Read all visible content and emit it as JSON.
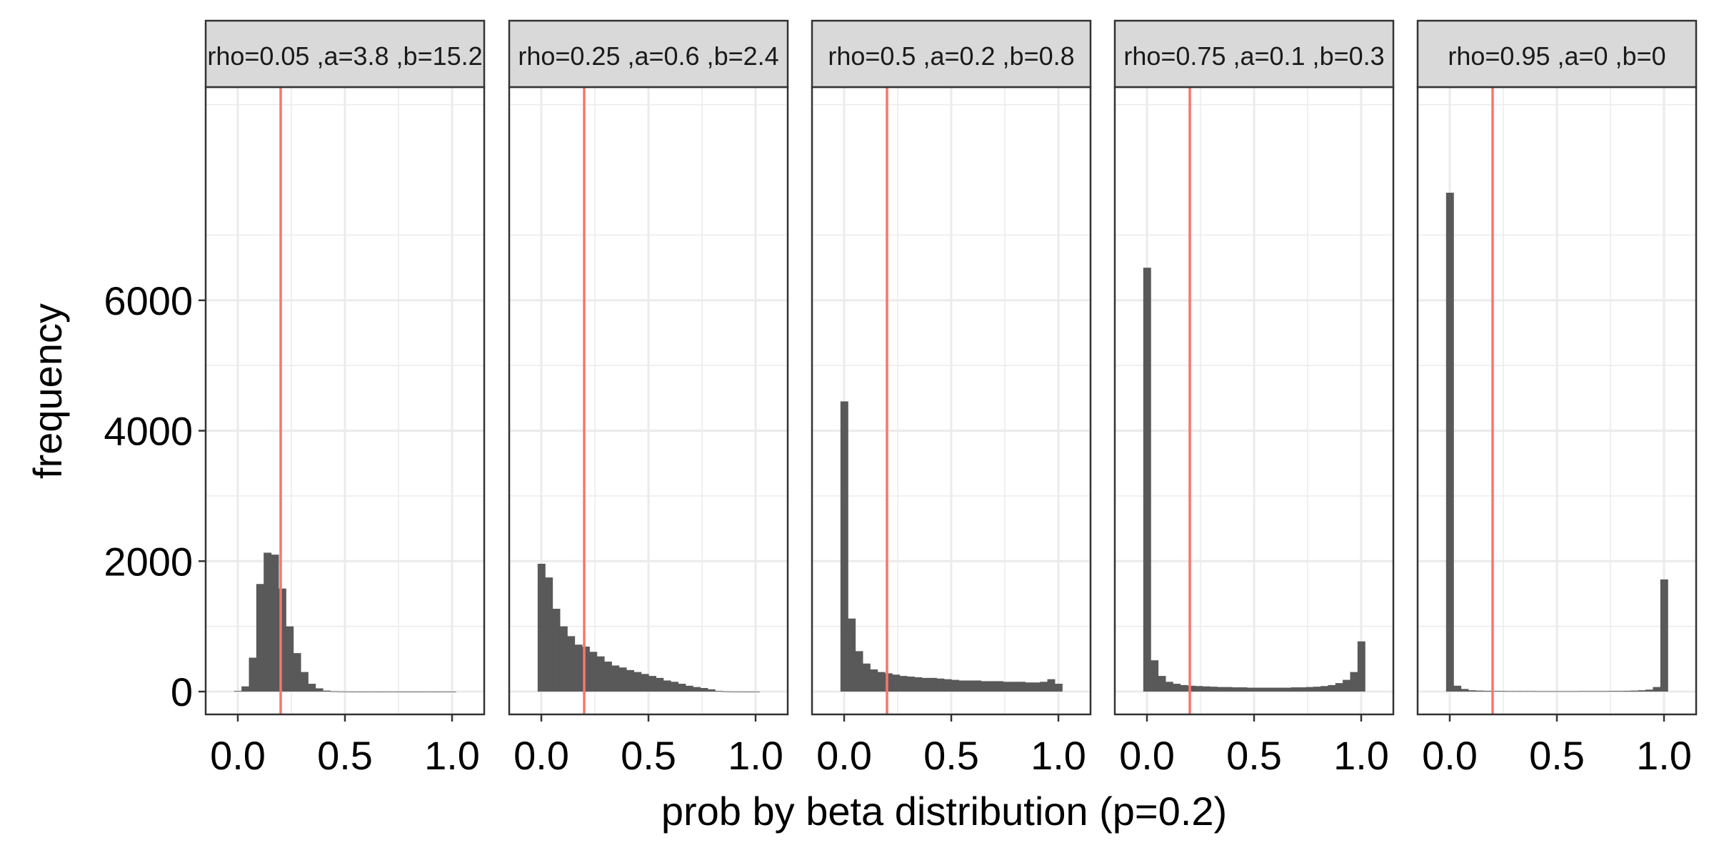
{
  "chart_data": {
    "type": "bar",
    "xlabel": "prob by beta distribution (p=0.2)",
    "ylabel": "frequency",
    "xlim": [
      -0.15,
      1.15
    ],
    "ylim": [
      -350,
      9270
    ],
    "x_ticks": [
      0.0,
      0.5,
      1.0
    ],
    "x_tick_labels": [
      "0.0",
      "0.5",
      "1.0"
    ],
    "x_minor_ticks": [
      0.25,
      0.75
    ],
    "y_ticks": [
      0,
      2000,
      4000,
      6000
    ],
    "y_tick_labels": [
      "0",
      "2000",
      "4000",
      "6000"
    ],
    "y_minor_ticks": [
      1000,
      3000,
      5000,
      7000,
      9000
    ],
    "grid": true,
    "bin_width": 0.0345,
    "reference_line": {
      "x": 0.2,
      "color": "#F8766D"
    },
    "colors": {
      "bar": "#595959",
      "strip_bg": "#D9D9D9",
      "grid": "#EBEBEB",
      "reference": "#F8766D",
      "panel_border": "#333333"
    },
    "panels": [
      {
        "strip_label": "rho=0.05 ,a=3.8 ,b=15.2",
        "bin_centers": [
          0.0,
          0.0345,
          0.069,
          0.1034,
          0.1379,
          0.1724,
          0.2069,
          0.2414,
          0.2759,
          0.3103,
          0.3448,
          0.3793,
          0.4138,
          0.4483,
          0.4828,
          0.5172,
          0.5517,
          0.5862,
          0.6207,
          0.6552,
          0.6897,
          0.7241,
          0.7586,
          0.7931,
          0.8276,
          0.8621,
          0.8966,
          0.931,
          0.9655,
          1.0
        ],
        "counts": [
          10,
          80,
          520,
          1650,
          2130,
          2100,
          1580,
          1000,
          590,
          300,
          120,
          50,
          15,
          5,
          2,
          1,
          0,
          0,
          0,
          0,
          0,
          0,
          0,
          0,
          0,
          0,
          0,
          0,
          0,
          0
        ]
      },
      {
        "strip_label": "rho=0.25 ,a=0.6 ,b=2.4",
        "bin_centers": [
          0.0,
          0.0345,
          0.069,
          0.1034,
          0.1379,
          0.1724,
          0.2069,
          0.2414,
          0.2759,
          0.3103,
          0.3448,
          0.3793,
          0.4138,
          0.4483,
          0.4828,
          0.5172,
          0.5517,
          0.5862,
          0.6207,
          0.6552,
          0.6897,
          0.7241,
          0.7586,
          0.7931,
          0.8276,
          0.8621,
          0.8966,
          0.931,
          0.9655,
          1.0
        ],
        "counts": [
          1960,
          1750,
          1270,
          1000,
          850,
          720,
          690,
          610,
          540,
          460,
          400,
          370,
          330,
          300,
          270,
          240,
          210,
          170,
          150,
          120,
          90,
          70,
          55,
          35,
          10,
          3,
          1,
          0,
          0,
          0
        ]
      },
      {
        "strip_label": "rho=0.5 ,a=0.2 ,b=0.8",
        "bin_centers": [
          0.0,
          0.0345,
          0.069,
          0.1034,
          0.1379,
          0.1724,
          0.2069,
          0.2414,
          0.2759,
          0.3103,
          0.3448,
          0.3793,
          0.4138,
          0.4483,
          0.4828,
          0.5172,
          0.5517,
          0.5862,
          0.6207,
          0.6552,
          0.6897,
          0.7241,
          0.7586,
          0.7931,
          0.8276,
          0.8621,
          0.8966,
          0.931,
          0.9655,
          1.0
        ],
        "counts": [
          4450,
          1120,
          620,
          430,
          340,
          300,
          280,
          260,
          240,
          230,
          220,
          210,
          210,
          200,
          190,
          180,
          170,
          170,
          170,
          160,
          160,
          160,
          150,
          150,
          150,
          140,
          140,
          150,
          190,
          120
        ]
      },
      {
        "strip_label": "rho=0.75 ,a=0.1 ,b=0.3",
        "bin_centers": [
          0.0,
          0.0345,
          0.069,
          0.1034,
          0.1379,
          0.1724,
          0.2069,
          0.2414,
          0.2759,
          0.3103,
          0.3448,
          0.3793,
          0.4138,
          0.4483,
          0.4828,
          0.5172,
          0.5517,
          0.5862,
          0.6207,
          0.6552,
          0.6897,
          0.7241,
          0.7586,
          0.7931,
          0.8276,
          0.8621,
          0.8966,
          0.931,
          0.9655,
          1.0
        ],
        "counts": [
          6500,
          480,
          240,
          150,
          120,
          100,
          90,
          85,
          80,
          75,
          70,
          70,
          65,
          65,
          60,
          60,
          60,
          60,
          60,
          60,
          65,
          65,
          70,
          75,
          85,
          100,
          130,
          180,
          300,
          770
        ]
      },
      {
        "strip_label": "rho=0.95 ,a=0 ,b=0",
        "bin_centers": [
          0.0,
          0.0345,
          0.069,
          0.1034,
          0.1379,
          0.1724,
          0.2069,
          0.2414,
          0.2759,
          0.3103,
          0.3448,
          0.3793,
          0.4138,
          0.4483,
          0.4828,
          0.5172,
          0.5517,
          0.5862,
          0.6207,
          0.6552,
          0.6897,
          0.7241,
          0.7586,
          0.7931,
          0.8276,
          0.8621,
          0.8966,
          0.931,
          0.9655,
          1.0
        ],
        "counts": [
          7650,
          90,
          40,
          20,
          15,
          12,
          10,
          10,
          8,
          8,
          8,
          8,
          6,
          6,
          6,
          6,
          6,
          6,
          8,
          8,
          8,
          8,
          10,
          10,
          12,
          15,
          20,
          30,
          70,
          1720
        ]
      }
    ]
  }
}
